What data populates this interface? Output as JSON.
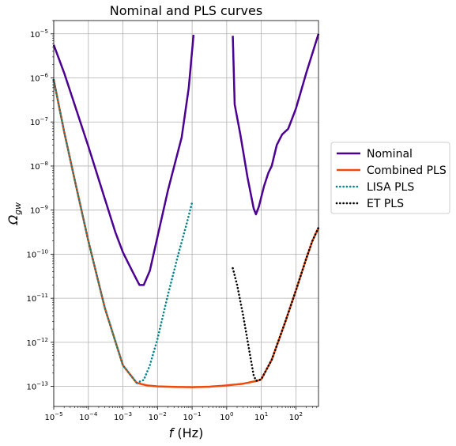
{
  "chart_data": {
    "type": "line",
    "title": "Nominal and PLS curves",
    "xlabel": "$f$ (Hz)",
    "ylabel": "$\\Omega_{gw}$",
    "xscale": "log",
    "yscale": "log",
    "xlim": [
      1e-05,
      450
    ],
    "ylim": [
      3.5e-14,
      2e-05
    ],
    "grid": true,
    "legend_position": "outside-right",
    "xticks": [
      {
        "value": 1e-05,
        "base": "10",
        "exp": "−5"
      },
      {
        "value": 0.0001,
        "base": "10",
        "exp": "−4"
      },
      {
        "value": 0.001,
        "base": "10",
        "exp": "−3"
      },
      {
        "value": 0.01,
        "base": "10",
        "exp": "−2"
      },
      {
        "value": 0.1,
        "base": "10",
        "exp": "−1"
      },
      {
        "value": 1.0,
        "base": "10",
        "exp": "0"
      },
      {
        "value": 10.0,
        "base": "10",
        "exp": "1"
      },
      {
        "value": 100.0,
        "base": "10",
        "exp": "2"
      }
    ],
    "yticks": [
      {
        "value": 1e-13,
        "base": "10",
        "exp": "−13"
      },
      {
        "value": 1e-12,
        "base": "10",
        "exp": "−12"
      },
      {
        "value": 1e-11,
        "base": "10",
        "exp": "−11"
      },
      {
        "value": 1e-10,
        "base": "10",
        "exp": "−10"
      },
      {
        "value": 1e-09,
        "base": "10",
        "exp": "−9"
      },
      {
        "value": 1e-08,
        "base": "10",
        "exp": "−8"
      },
      {
        "value": 1e-07,
        "base": "10",
        "exp": "−7"
      },
      {
        "value": 1e-06,
        "base": "10",
        "exp": "−6"
      },
      {
        "value": 1e-05,
        "base": "10",
        "exp": "−5"
      }
    ],
    "series": [
      {
        "name": "Nominal",
        "color": "#4b0092",
        "style": "solid",
        "segments": [
          [
            [
              1e-05,
              5.6e-06
            ],
            [
              2e-05,
              1.3e-06
            ],
            [
              4e-05,
              2.5e-07
            ],
            [
              0.0001,
              2.8e-08
            ],
            [
              0.0003,
              1.8e-09
            ],
            [
              0.0006,
              3.2e-10
            ],
            [
              0.001,
              1.1e-10
            ],
            [
              0.0015,
              5.8e-11
            ],
            [
              0.0022,
              3.2e-11
            ],
            [
              0.003,
              2e-11
            ],
            [
              0.004,
              2e-11
            ],
            [
              0.006,
              4.2e-11
            ],
            [
              0.01,
              2.5e-10
            ],
            [
              0.02,
              2.8e-09
            ],
            [
              0.05,
              4.5e-08
            ],
            [
              0.08,
              6e-07
            ],
            [
              0.11,
              9.5e-06
            ]
          ],
          [
            [
              1.5,
              9e-06
            ],
            [
              1.7,
              2.5e-07
            ],
            [
              2.5,
              5e-08
            ],
            [
              4,
              5.5e-09
            ],
            [
              6,
              1.1e-09
            ],
            [
              7,
              8e-10
            ],
            [
              8.5,
              1.2e-09
            ],
            [
              12,
              3.5e-09
            ],
            [
              16,
              7e-09
            ],
            [
              20,
              1e-08
            ],
            [
              28,
              3e-08
            ],
            [
              40,
              5.2e-08
            ],
            [
              60,
              7e-08
            ],
            [
              100,
              2e-07
            ],
            [
              200,
              1.3e-06
            ],
            [
              450,
              1e-05
            ]
          ]
        ]
      },
      {
        "name": "Combined PLS",
        "color": "#f0490a",
        "style": "solid",
        "segments": [
          [
            [
              1e-05,
              9e-07
            ],
            [
              2e-05,
              6e-08
            ],
            [
              4e-05,
              5e-09
            ],
            [
              0.0001,
              2e-10
            ],
            [
              0.0003,
              6e-12
            ],
            [
              0.001,
              3e-13
            ],
            [
              0.0025,
              1.2e-13
            ],
            [
              0.005,
              1.05e-13
            ],
            [
              0.01,
              1e-13
            ],
            [
              0.04,
              9.7e-14
            ],
            [
              0.1,
              9.6e-14
            ],
            [
              0.3,
              9.8e-14
            ],
            [
              1,
              1.05e-13
            ],
            [
              3,
              1.15e-13
            ],
            [
              8,
              1.35e-13
            ],
            [
              10,
              1.45e-13
            ],
            [
              20,
              4e-13
            ],
            [
              50,
              3e-12
            ],
            [
              100,
              1.5e-11
            ],
            [
              200,
              8e-11
            ],
            [
              300,
              2e-10
            ],
            [
              450,
              4e-10
            ]
          ]
        ]
      },
      {
        "name": "LISA PLS",
        "color": "#00838a",
        "style": "dotted",
        "segments": [
          [
            [
              1e-05,
              9e-07
            ],
            [
              2e-05,
              6e-08
            ],
            [
              4e-05,
              5e-09
            ],
            [
              0.0001,
              2e-10
            ],
            [
              0.0003,
              6e-12
            ],
            [
              0.001,
              3e-13
            ],
            [
              0.0025,
              1.2e-13
            ],
            [
              0.004,
              1.4e-13
            ],
            [
              0.006,
              3e-13
            ],
            [
              0.01,
              1.2e-12
            ],
            [
              0.02,
              1.2e-11
            ],
            [
              0.04,
              1e-10
            ],
            [
              0.07,
              5e-10
            ],
            [
              0.1,
              1.5e-09
            ]
          ]
        ]
      },
      {
        "name": "ET PLS",
        "color": "#000000",
        "style": "dotted",
        "segments": [
          [
            [
              1.5,
              4.8e-11
            ],
            [
              2,
              2e-11
            ],
            [
              3,
              4e-12
            ],
            [
              4,
              1.1e-12
            ],
            [
              5,
              4e-13
            ],
            [
              6,
              1.8e-13
            ],
            [
              7,
              1.35e-13
            ],
            [
              8,
              1.35e-13
            ],
            [
              10,
              1.45e-13
            ],
            [
              20,
              4e-13
            ],
            [
              50,
              3e-12
            ],
            [
              100,
              1.5e-11
            ],
            [
              200,
              8e-11
            ],
            [
              300,
              2e-10
            ],
            [
              450,
              4e-10
            ]
          ]
        ]
      }
    ]
  }
}
